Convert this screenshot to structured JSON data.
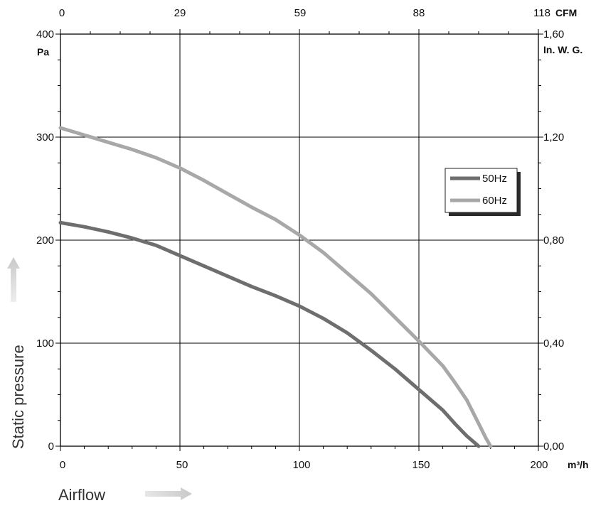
{
  "chart_data": {
    "type": "line",
    "title": "",
    "xlabel": "Airflow",
    "ylabel": "Static pressure",
    "x_unit": "m³/h",
    "y_unit": "Pa",
    "x2_unit": "CFM",
    "y2_unit": "In. W. G.",
    "xlim": [
      0,
      200
    ],
    "ylim": [
      0,
      400
    ],
    "x_ticks": [
      "0",
      "50",
      "100",
      "150",
      "200"
    ],
    "y_ticks": [
      "0",
      "100",
      "200",
      "300",
      "400"
    ],
    "x2_ticks": [
      "0",
      "29",
      "59",
      "88",
      "118"
    ],
    "y2_ticks": [
      "0,00",
      "0,40",
      "0,80",
      "1,20",
      "1,60"
    ],
    "grid": true,
    "legend_position": "right",
    "series": [
      {
        "name": "50Hz",
        "color": "#6e6e6e",
        "x": [
          0,
          10,
          20,
          30,
          40,
          50,
          60,
          70,
          80,
          90,
          100,
          110,
          120,
          130,
          140,
          150,
          160,
          165,
          170,
          175
        ],
        "y": [
          217,
          213,
          208,
          202,
          195,
          185,
          175,
          165,
          155,
          146,
          136,
          124,
          110,
          93,
          75,
          55,
          35,
          22,
          10,
          0
        ]
      },
      {
        "name": "60Hz",
        "color": "#a8a8a8",
        "x": [
          0,
          10,
          20,
          30,
          40,
          50,
          60,
          70,
          80,
          90,
          100,
          110,
          120,
          130,
          140,
          150,
          160,
          165,
          170,
          175,
          178,
          180
        ],
        "y": [
          309,
          302,
          295,
          288,
          280,
          270,
          258,
          245,
          232,
          220,
          205,
          188,
          168,
          148,
          125,
          102,
          78,
          62,
          45,
          22,
          8,
          0
        ]
      }
    ]
  }
}
